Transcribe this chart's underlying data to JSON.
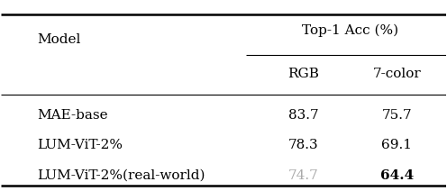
{
  "col_header_1": "Model",
  "col_header_2": "Top-1 Acc (%)",
  "sub_header_rgb": "RGB",
  "sub_header_7color": "7-color",
  "rows": [
    {
      "model": "MAE-base",
      "rgb": "83.7",
      "color7": "75.7",
      "rgb_bold": false,
      "rgb_gray": false,
      "c7_bold": false,
      "c7_gray": false
    },
    {
      "model": "LUM-ViT-2%",
      "rgb": "78.3",
      "color7": "69.1",
      "rgb_bold": false,
      "rgb_gray": false,
      "c7_bold": false,
      "c7_gray": false
    },
    {
      "model": "LUM-ViT-2%(real-world)",
      "rgb": "74.7",
      "color7": "64.4",
      "rgb_bold": false,
      "rgb_gray": true,
      "c7_bold": true,
      "c7_gray": false
    }
  ],
  "bg_color": "#ffffff",
  "text_color": "#000000",
  "gray_color": "#aaaaaa",
  "font_size": 11
}
